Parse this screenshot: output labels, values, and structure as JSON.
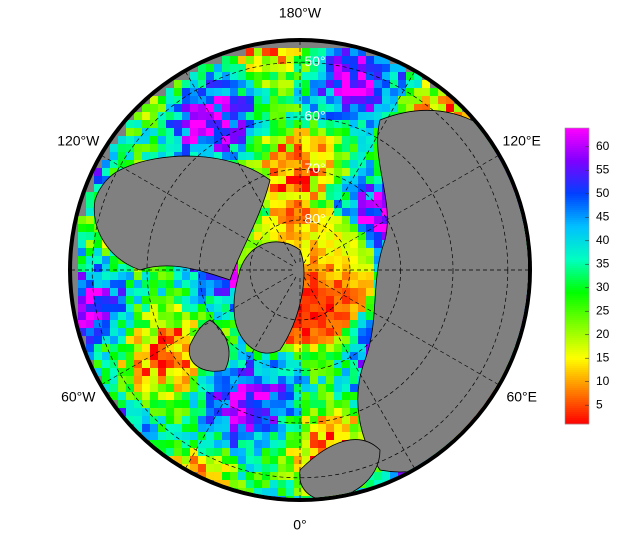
{
  "map": {
    "meridians": [
      {
        "lon": 180,
        "label": "180°W"
      },
      {
        "lon": -120,
        "label": "120°W"
      },
      {
        "lon": 120,
        "label": "120°E"
      },
      {
        "lon": -60,
        "label": "60°W"
      },
      {
        "lon": 60,
        "label": "60°E"
      },
      {
        "lon": 0,
        "label": "0°"
      }
    ],
    "parallels": [
      {
        "lat": 50,
        "label": "50°"
      },
      {
        "lat": 60,
        "label": "60°"
      },
      {
        "lat": 70,
        "label": "70°"
      },
      {
        "lat": 80,
        "label": "80°"
      }
    ],
    "colorbar": {
      "clim": [
        1,
        64
      ],
      "ticks": [
        5,
        10,
        15,
        20,
        25,
        30,
        35,
        40,
        45,
        50,
        55,
        60
      ],
      "colors": [
        "#ff0000",
        "#ff8000",
        "#ffff00",
        "#80ff00",
        "#00ff00",
        "#00ffc0",
        "#00c0ff",
        "#0040ff",
        "#8000ff",
        "#ff00ff"
      ]
    }
  }
}
